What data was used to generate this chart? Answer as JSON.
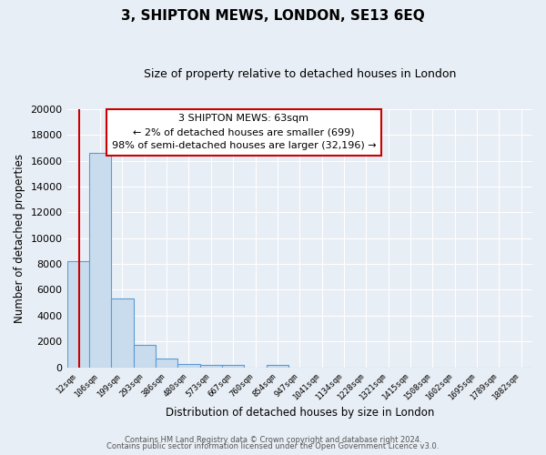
{
  "title": "3, SHIPTON MEWS, LONDON, SE13 6EQ",
  "subtitle": "Size of property relative to detached houses in London",
  "xlabel": "Distribution of detached houses by size in London",
  "ylabel": "Number of detached properties",
  "bar_labels": [
    "12sqm",
    "106sqm",
    "199sqm",
    "293sqm",
    "386sqm",
    "480sqm",
    "573sqm",
    "667sqm",
    "760sqm",
    "854sqm",
    "947sqm",
    "1041sqm",
    "1134sqm",
    "1228sqm",
    "1321sqm",
    "1415sqm",
    "1508sqm",
    "1602sqm",
    "1695sqm",
    "1789sqm",
    "1882sqm"
  ],
  "bar_values": [
    8200,
    16600,
    5300,
    1750,
    700,
    250,
    200,
    150,
    0,
    150,
    0,
    0,
    0,
    0,
    0,
    0,
    0,
    0,
    0,
    0,
    0
  ],
  "bar_color": "#c9dcee",
  "bar_edge_color": "#5b9bd5",
  "property_line_color": "#cc0000",
  "annotation_text": "3 SHIPTON MEWS: 63sqm\n← 2% of detached houses are smaller (699)\n98% of semi-detached houses are larger (32,196) →",
  "annotation_box_color": "white",
  "annotation_box_edge": "#cc0000",
  "ylim": [
    0,
    20000
  ],
  "yticks": [
    0,
    2000,
    4000,
    6000,
    8000,
    10000,
    12000,
    14000,
    16000,
    18000,
    20000
  ],
  "footer1": "Contains HM Land Registry data © Crown copyright and database right 2024.",
  "footer2": "Contains public sector information licensed under the Open Government Licence v3.0.",
  "bg_color": "#e8eef5",
  "plot_bg_color": "#e8eef5",
  "grid_color": "#ffffff"
}
